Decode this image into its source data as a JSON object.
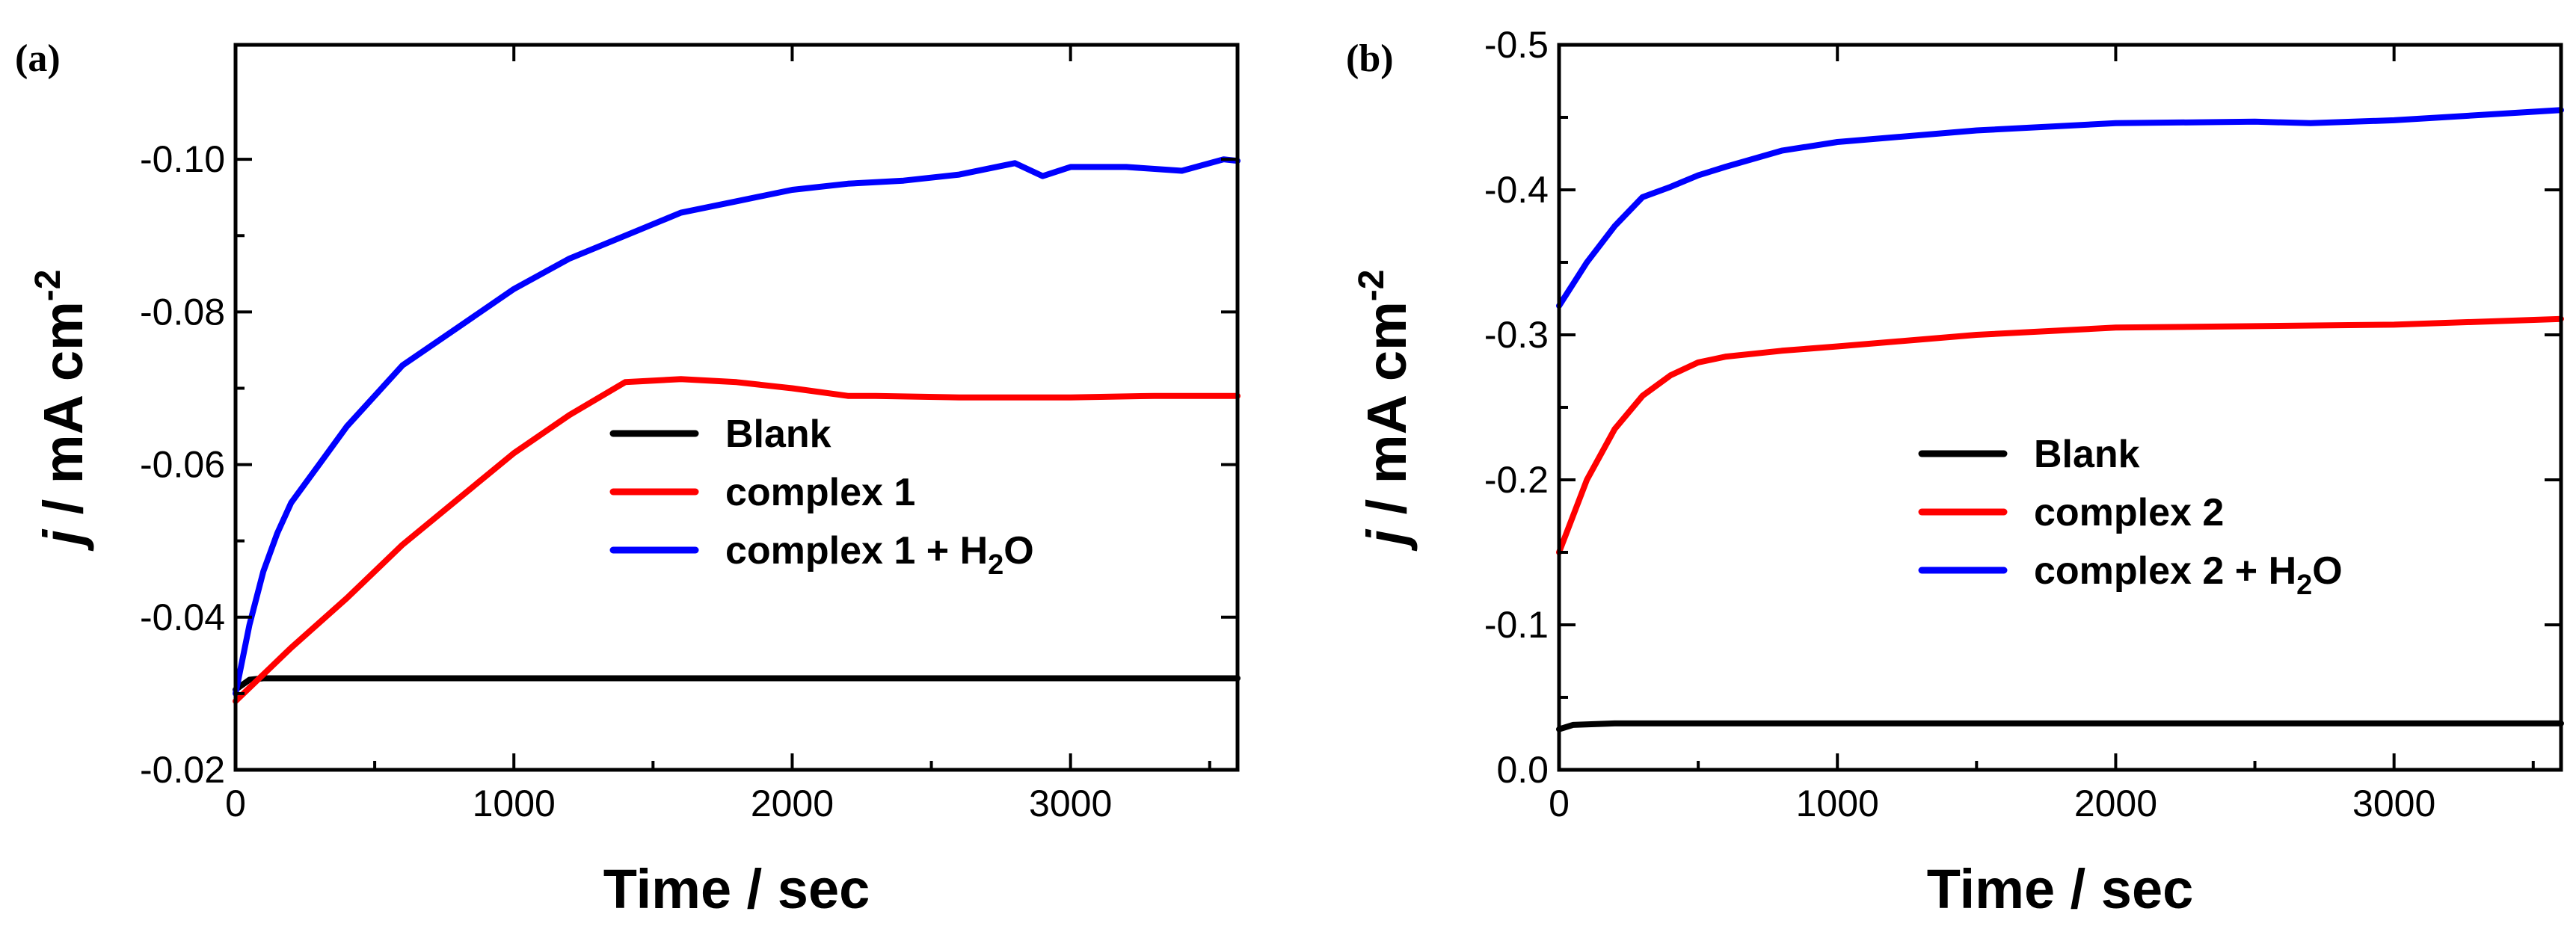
{
  "chart_data": [
    {
      "type": "line",
      "panel_label": "(a)",
      "xlabel": "Time / sec",
      "ylabel_italic": "j",
      "ylabel_rest": " / mA cm",
      "ylabel_sup": "-2",
      "xlim": [
        0,
        3600
      ],
      "ylim": [
        -0.02,
        -0.115
      ],
      "xticks": [
        0,
        1000,
        2000,
        3000
      ],
      "xtick_labels": [
        "0",
        "1000",
        "2000",
        "3000"
      ],
      "yticks": [
        -0.02,
        -0.04,
        -0.06,
        -0.08,
        -0.1
      ],
      "ytick_labels": [
        "-0.02",
        "-0.04",
        "-0.06",
        "-0.08",
        "-0.10"
      ],
      "legend_position": "lower-right",
      "series": [
        {
          "name": "Blank",
          "label_main": "Blank",
          "label_sub": "",
          "label_tail": "",
          "color": "#000000",
          "x": [
            0,
            50,
            100,
            500,
            1000,
            1500,
            2000,
            2500,
            3000,
            3600
          ],
          "y": [
            -0.0305,
            -0.0318,
            -0.032,
            -0.032,
            -0.032,
            -0.032,
            -0.032,
            -0.032,
            -0.032,
            -0.032
          ]
        },
        {
          "name": "complex 1",
          "label_main": "complex 1",
          "label_sub": "",
          "label_tail": "",
          "color": "#ff0000",
          "x": [
            0,
            100,
            200,
            400,
            600,
            800,
            1000,
            1200,
            1400,
            1600,
            1800,
            2000,
            2200,
            2300,
            2600,
            3000,
            3300,
            3600
          ],
          "y": [
            -0.029,
            -0.0325,
            -0.036,
            -0.0425,
            -0.0495,
            -0.0555,
            -0.0615,
            -0.0665,
            -0.0708,
            -0.0712,
            -0.0708,
            -0.07,
            -0.069,
            -0.069,
            -0.0688,
            -0.0688,
            -0.069,
            -0.069
          ],
          "final_value": -0.069
        },
        {
          "name": "complex 1 + H2O",
          "label_main": "complex 1 + H",
          "label_sub": "2",
          "label_tail": "O",
          "color": "#0000ff",
          "x": [
            0,
            50,
            100,
            150,
            200,
            300,
            400,
            500,
            600,
            800,
            1000,
            1200,
            1400,
            1600,
            1800,
            2000,
            2200,
            2400,
            2600,
            2800,
            2900,
            3000,
            3200,
            3400,
            3550,
            3600
          ],
          "y": [
            -0.03,
            -0.039,
            -0.046,
            -0.051,
            -0.055,
            -0.06,
            -0.065,
            -0.069,
            -0.073,
            -0.078,
            -0.083,
            -0.087,
            -0.09,
            -0.093,
            -0.0945,
            -0.096,
            -0.0968,
            -0.0972,
            -0.098,
            -0.0995,
            -0.0978,
            -0.099,
            -0.099,
            -0.0985,
            -0.1,
            -0.0998
          ],
          "final_value": -0.1
        }
      ]
    },
    {
      "type": "line",
      "panel_label": "(b)",
      "xlabel": "Time / sec",
      "ylabel_italic": "j",
      "ylabel_rest": " / mA cm",
      "ylabel_sup": "-2",
      "xlim": [
        0,
        3600
      ],
      "ylim": [
        0.0,
        -0.5
      ],
      "xticks": [
        0,
        1000,
        2000,
        3000
      ],
      "xtick_labels": [
        "0",
        "1000",
        "2000",
        "3000"
      ],
      "yticks": [
        0.0,
        -0.1,
        -0.2,
        -0.3,
        -0.4,
        -0.5
      ],
      "ytick_labels": [
        "0.0",
        "-0.1",
        "-0.2",
        "-0.3",
        "-0.4",
        "-0.5"
      ],
      "legend_position": "center-right",
      "series": [
        {
          "name": "Blank",
          "label_main": "Blank",
          "label_sub": "",
          "label_tail": "",
          "color": "#000000",
          "x": [
            0,
            50,
            200,
            1000,
            2000,
            3000,
            3600
          ],
          "y": [
            -0.028,
            -0.031,
            -0.032,
            -0.032,
            -0.032,
            -0.032,
            -0.032
          ]
        },
        {
          "name": "complex 2",
          "label_main": "complex 2",
          "label_sub": "",
          "label_tail": "",
          "color": "#ff0000",
          "x": [
            0,
            50,
            100,
            200,
            300,
            400,
            500,
            600,
            800,
            1000,
            1500,
            2000,
            2500,
            3000,
            3600
          ],
          "y": [
            -0.15,
            -0.175,
            -0.2,
            -0.235,
            -0.258,
            -0.272,
            -0.281,
            -0.285,
            -0.289,
            -0.292,
            -0.3,
            -0.305,
            -0.306,
            -0.307,
            -0.311
          ],
          "final_value": -0.31
        },
        {
          "name": "complex 2 + H2O",
          "label_main": "complex 2 + H",
          "label_sub": "2",
          "label_tail": "O",
          "color": "#0000ff",
          "x": [
            0,
            50,
            100,
            200,
            300,
            400,
            500,
            600,
            800,
            1000,
            1500,
            2000,
            2500,
            2700,
            3000,
            3600
          ],
          "y": [
            -0.32,
            -0.335,
            -0.35,
            -0.375,
            -0.395,
            -0.402,
            -0.41,
            -0.416,
            -0.427,
            -0.433,
            -0.441,
            -0.446,
            -0.447,
            -0.446,
            -0.448,
            -0.455
          ],
          "final_value": -0.455
        }
      ]
    }
  ]
}
